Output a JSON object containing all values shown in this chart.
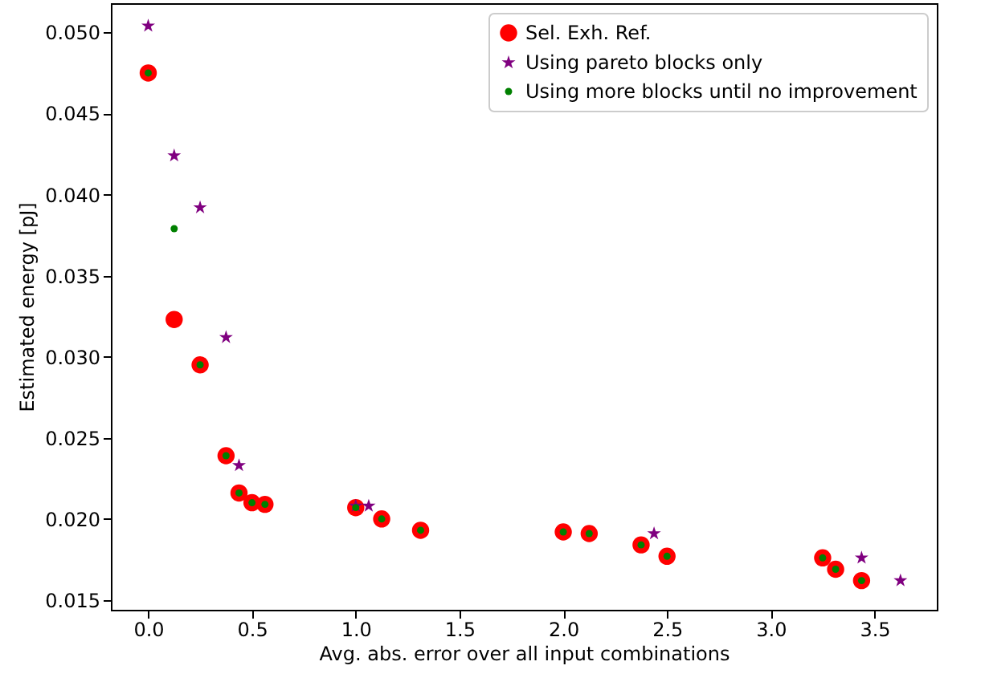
{
  "chart_data": {
    "type": "scatter",
    "xlabel": "Avg. abs. error over all input combinations",
    "ylabel": "Estimated energy [pJ]",
    "xlim": [
      -0.18,
      3.8
    ],
    "ylim": [
      0.0144,
      0.0518
    ],
    "xticks": [
      {
        "value": 0,
        "label": "0.0"
      },
      {
        "value": 0.5,
        "label": "0.5"
      },
      {
        "value": 1,
        "label": "1.0"
      },
      {
        "value": 1.5,
        "label": "1.5"
      },
      {
        "value": 2,
        "label": "2.0"
      },
      {
        "value": 2.5,
        "label": "2.5"
      },
      {
        "value": 3,
        "label": "3.0"
      },
      {
        "value": 3.5,
        "label": "3.5"
      }
    ],
    "yticks": [
      {
        "value": 0.015,
        "label": "0.015"
      },
      {
        "value": 0.02,
        "label": "0.020"
      },
      {
        "value": 0.025,
        "label": "0.025"
      },
      {
        "value": 0.03,
        "label": "0.030"
      },
      {
        "value": 0.035,
        "label": "0.035"
      },
      {
        "value": 0.04,
        "label": "0.040"
      },
      {
        "value": 0.045,
        "label": "0.045"
      },
      {
        "value": 0.05,
        "label": "0.050"
      }
    ],
    "grid": false,
    "legend": "top right",
    "series": [
      {
        "name": "Sel. Exh. Ref.",
        "color": "#ff0000",
        "marker": "circle",
        "x": [
          0,
          0.125,
          0.25,
          0.375,
          0.4375,
          0.5,
          0.5625,
          1.0,
          1.125,
          1.3125,
          2.0,
          2.125,
          2.375,
          2.5,
          3.25,
          3.3125,
          3.4375
        ],
        "values": [
          0.0475,
          0.0323,
          0.0295,
          0.0239,
          0.0216,
          0.021,
          0.0209,
          0.0207,
          0.02,
          0.0193,
          0.0192,
          0.0191,
          0.0184,
          0.0177,
          0.0176,
          0.0169,
          0.0162
        ]
      },
      {
        "name": "Using pareto blocks only",
        "color": "#800080",
        "marker": "star",
        "x": [
          0,
          0.125,
          0.25,
          0.375,
          0.4375,
          1.0,
          1.0625,
          2.4375,
          3.4375,
          3.625
        ],
        "values": [
          0.0504,
          0.0424,
          0.0392,
          0.0312,
          0.0233,
          0.0208,
          0.0208,
          0.0191,
          0.0176,
          0.0162
        ]
      },
      {
        "name": "Using more blocks until no improvement",
        "color": "#008000",
        "marker": "circle",
        "x": [
          0,
          0.125,
          0.25,
          0.375,
          0.4375,
          0.5,
          0.5625,
          1.0,
          1.125,
          1.3125,
          2.0,
          2.125,
          2.375,
          2.5,
          3.25,
          3.3125,
          3.4375
        ],
        "values": [
          0.0475,
          0.0379,
          0.0295,
          0.0239,
          0.0216,
          0.021,
          0.0209,
          0.0207,
          0.02,
          0.0193,
          0.0192,
          0.0191,
          0.0184,
          0.0177,
          0.0176,
          0.0169,
          0.0162
        ]
      }
    ]
  }
}
